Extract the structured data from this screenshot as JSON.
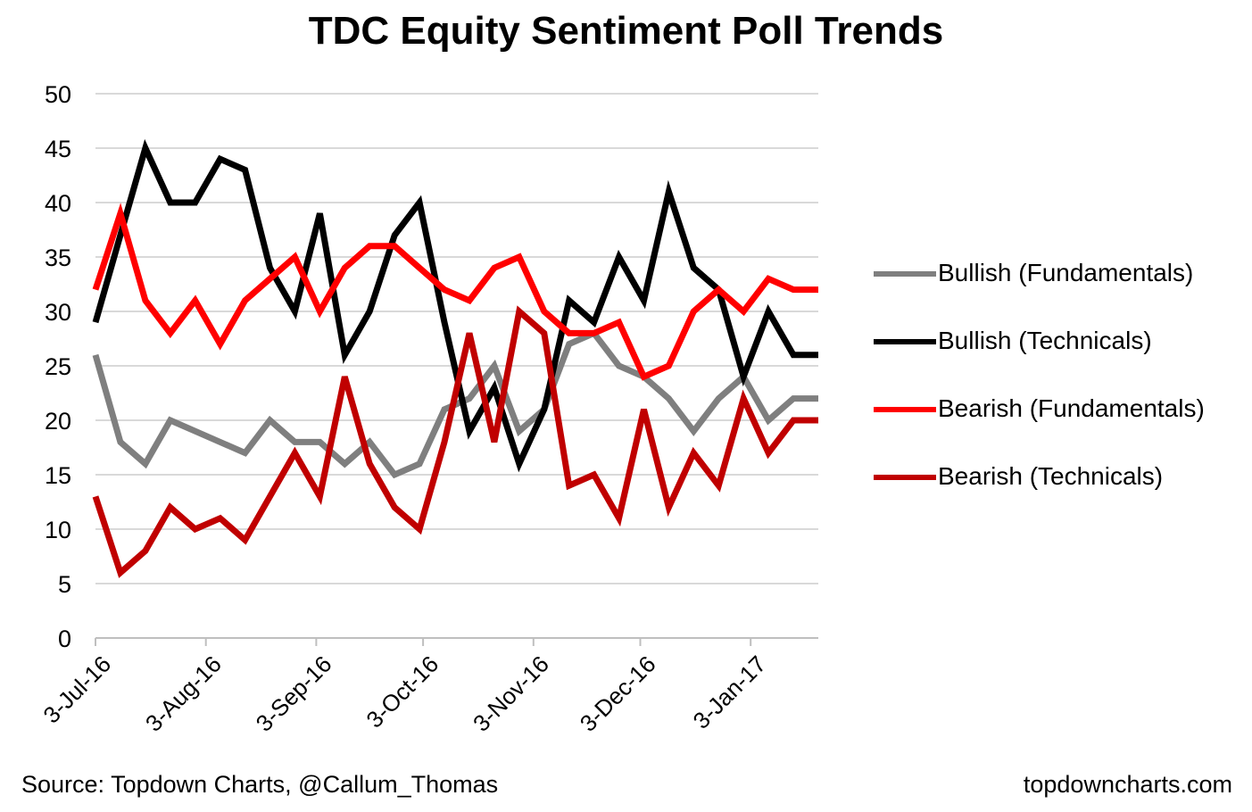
{
  "chart_data": {
    "type": "line",
    "title": "TDC Equity Sentiment Poll Trends",
    "xlabel": "",
    "ylabel": "",
    "ylim": [
      0,
      50
    ],
    "yticks": [
      "0",
      "5",
      "10",
      "15",
      "20",
      "25",
      "30",
      "35",
      "40",
      "45",
      "50"
    ],
    "x_date_start": "2016-07-03",
    "x_date_end": "2017-01-22",
    "xticks": [
      {
        "label": "3-Jul-16",
        "date": "2016-07-03"
      },
      {
        "label": "3-Aug-16",
        "date": "2016-08-03"
      },
      {
        "label": "3-Sep-16",
        "date": "2016-09-03"
      },
      {
        "label": "3-Oct-16",
        "date": "2016-10-03"
      },
      {
        "label": "3-Nov-16",
        "date": "2016-11-03"
      },
      {
        "label": "3-Dec-16",
        "date": "2016-12-03"
      },
      {
        "label": "3-Jan-17",
        "date": "2017-01-03"
      }
    ],
    "x": [
      "2016-07-03",
      "2016-07-10",
      "2016-07-17",
      "2016-07-24",
      "2016-07-31",
      "2016-08-07",
      "2016-08-14",
      "2016-08-21",
      "2016-08-28",
      "2016-09-04",
      "2016-09-11",
      "2016-09-18",
      "2016-09-25",
      "2016-10-02",
      "2016-10-09",
      "2016-10-16",
      "2016-10-23",
      "2016-10-30",
      "2016-11-06",
      "2016-11-13",
      "2016-11-20",
      "2016-11-27",
      "2016-12-04",
      "2016-12-11",
      "2016-12-18",
      "2016-12-25",
      "2017-01-01",
      "2017-01-08",
      "2017-01-15",
      "2017-01-22"
    ],
    "grid": true,
    "legend_position": "right",
    "series": [
      {
        "name": "Bullish (Fundamentals)",
        "color": "#7f7f7f",
        "values": [
          26,
          18,
          16,
          20,
          19,
          18,
          17,
          20,
          18,
          18,
          16,
          18,
          15,
          16,
          21,
          22,
          25,
          19,
          21,
          27,
          28,
          25,
          24,
          22,
          19,
          22,
          24,
          20,
          22,
          22
        ]
      },
      {
        "name": "Bullish (Technicals)",
        "color": "#000000",
        "values": [
          29,
          37,
          45,
          40,
          40,
          44,
          43,
          34,
          30,
          39,
          26,
          30,
          37,
          40,
          29,
          19,
          23,
          16,
          21,
          31,
          29,
          35,
          31,
          41,
          34,
          32,
          24,
          30,
          26,
          26
        ]
      },
      {
        "name": "Bearish (Fundamentals)",
        "color": "#ff0000",
        "values": [
          32,
          39,
          31,
          28,
          31,
          27,
          31,
          33,
          35,
          30,
          34,
          36,
          36,
          34,
          32,
          31,
          34,
          35,
          30,
          28,
          28,
          29,
          24,
          25,
          30,
          32,
          30,
          33,
          32,
          32
        ]
      },
      {
        "name": "Bearish (Technicals)",
        "color": "#c00000",
        "values": [
          13,
          6,
          8,
          12,
          10,
          11,
          9,
          13,
          17,
          13,
          24,
          16,
          12,
          10,
          18,
          28,
          18,
          30,
          28,
          14,
          15,
          11,
          21,
          12,
          17,
          14,
          22,
          17,
          20,
          20
        ]
      }
    ]
  },
  "footer": {
    "source": "Source: Topdown Charts, @Callum_Thomas",
    "site": "topdowncharts.com"
  }
}
